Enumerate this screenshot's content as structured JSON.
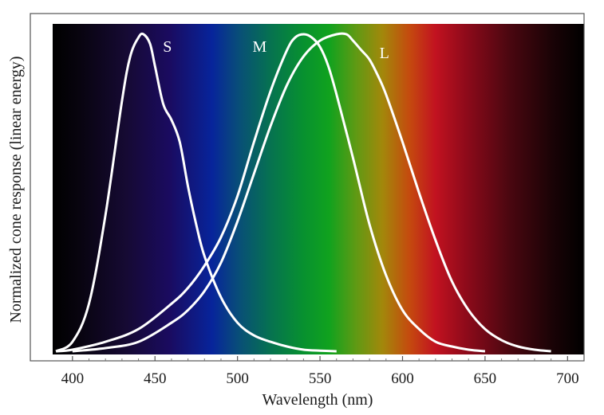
{
  "chart_data": {
    "type": "line",
    "title": "",
    "xlabel": "Wavelength (nm)",
    "ylabel": "Normalized cone response (linear energy)",
    "xlim": [
      388,
      710
    ],
    "ylim": [
      0,
      1.0
    ],
    "x_ticks": [
      400,
      450,
      500,
      550,
      600,
      650,
      700
    ],
    "x_tick_labels": [
      "400",
      "450",
      "500",
      "550",
      "600",
      "650",
      "700"
    ],
    "y_ticks_shown": false,
    "grid": false,
    "background": "visible-spectrum gradient",
    "series": [
      {
        "name": "S",
        "color": "#ffffff",
        "x": [
          390,
          400,
          410,
          420,
          430,
          435,
          440,
          443,
          447,
          450,
          455,
          460,
          465,
          470,
          475,
          480,
          490,
          500,
          510,
          520,
          530,
          540,
          550,
          560
        ],
        "y": [
          0.0,
          0.03,
          0.15,
          0.43,
          0.79,
          0.93,
          0.99,
          1.0,
          0.97,
          0.9,
          0.78,
          0.73,
          0.66,
          0.52,
          0.4,
          0.3,
          0.17,
          0.09,
          0.05,
          0.03,
          0.015,
          0.005,
          0.002,
          0.0
        ]
      },
      {
        "name": "M",
        "color": "#ffffff",
        "x": [
          390,
          400,
          420,
          440,
          460,
          470,
          480,
          490,
          500,
          510,
          520,
          530,
          535,
          540,
          545,
          550,
          555,
          560,
          570,
          580,
          590,
          600,
          610,
          620,
          630,
          640,
          650
        ],
        "y": [
          0.0,
          0.005,
          0.03,
          0.07,
          0.15,
          0.2,
          0.27,
          0.36,
          0.49,
          0.66,
          0.82,
          0.95,
          0.99,
          1.0,
          0.99,
          0.96,
          0.9,
          0.81,
          0.61,
          0.4,
          0.24,
          0.13,
          0.07,
          0.03,
          0.015,
          0.005,
          0.0
        ]
      },
      {
        "name": "L",
        "color": "#ffffff",
        "x": [
          400,
          420,
          440,
          460,
          470,
          480,
          490,
          500,
          510,
          520,
          530,
          540,
          550,
          560,
          566,
          570,
          575,
          580,
          585,
          590,
          600,
          610,
          620,
          630,
          640,
          650,
          660,
          670,
          680,
          690
        ],
        "y": [
          0.0,
          0.01,
          0.03,
          0.09,
          0.13,
          0.19,
          0.28,
          0.41,
          0.56,
          0.71,
          0.84,
          0.93,
          0.98,
          1.0,
          1.0,
          0.98,
          0.95,
          0.92,
          0.87,
          0.81,
          0.66,
          0.5,
          0.35,
          0.22,
          0.13,
          0.07,
          0.035,
          0.015,
          0.005,
          0.0
        ]
      }
    ]
  }
}
